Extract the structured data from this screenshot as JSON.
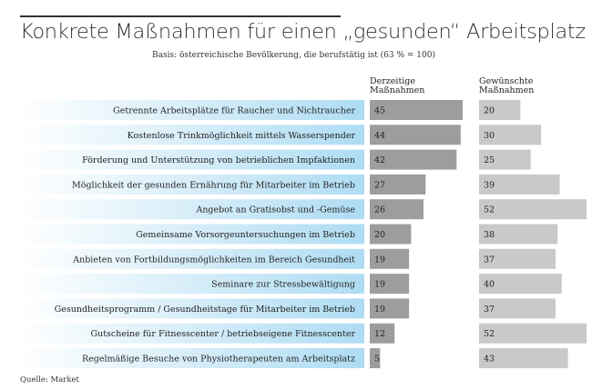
{
  "chart_data": {
    "type": "bar",
    "title": "Konkrete Maßnahmen für einen „gesunden“ Arbeitsplatz",
    "subtitle": "Basis: österreichische Bevölkerung, die berufstätig ist (63 % = 100)",
    "source": "Quelle: Market",
    "categories": [
      "Getrennte Arbeitsplätze für Raucher und Nichtraucher",
      "Kostenlose Trinkmöglichkeit mittels Wasserspender",
      "Förderung und Unterstützung von betrieblichen Impfaktionen",
      "Möglichkeit der gesunden Ernährung für Mitarbeiter im Betrieb",
      "Angebot an Gratisobst und -Gemüse",
      "Gemeinsame Vorsorgeuntersuchungen im Betrieb",
      "Anbieten von Fortbildungsmöglichkeiten im Bereich Gesundheit",
      "Seminare zur Stressbewältigung",
      "Gesundheitsprogramm / Gesundheitstage für Mitarbeiter im Betrieb",
      "Gutscheine für Fitnesscenter / betriebseigene Fitnesscenter",
      "Regelmäßige Besuche von Physiotherapeuten am Arbeitsplatz"
    ],
    "series": [
      {
        "name": "Derzeitige Maßnahmen",
        "values": [
          45,
          44,
          42,
          27,
          26,
          20,
          19,
          19,
          19,
          12,
          5
        ],
        "color": "#9d9d9d"
      },
      {
        "name": "Gewünschte Maßnahmen",
        "values": [
          20,
          30,
          25,
          39,
          52,
          38,
          37,
          40,
          37,
          52,
          43
        ],
        "color": "#c9c9c9"
      }
    ],
    "xlim": [
      0,
      52
    ],
    "label_gradient": [
      "#ffffff",
      "#aedcf3"
    ]
  }
}
